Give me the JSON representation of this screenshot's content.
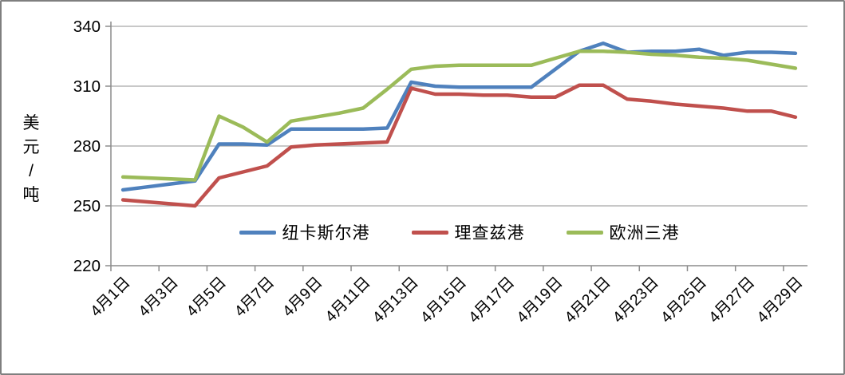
{
  "chart_data": {
    "type": "line",
    "title": "",
    "ylabel": "美元/吨",
    "xlabel": "",
    "ylim": [
      220,
      340
    ],
    "yticks": [
      220,
      250,
      280,
      310,
      340
    ],
    "grid": true,
    "legend_position": "bottom-center-inside",
    "x_points": 29,
    "x_note_days_per_tick": 2,
    "x_tick_labels": [
      "4月1日",
      "4月3日",
      "4月5日",
      "4月7日",
      "4月9日",
      "4月11日",
      "4月13日",
      "4月15日",
      "4月17日",
      "4月19日",
      "4月21日",
      "4月23日",
      "4月25日",
      "4月27日",
      "4月29日"
    ],
    "series": [
      {
        "name": "纽卡斯尔港",
        "color": "#4F81BD",
        "values": [
          258,
          259.5,
          261,
          262.5,
          281,
          281,
          280.5,
          288.5,
          288.5,
          288.5,
          288.5,
          289,
          312,
          310,
          309.5,
          309.5,
          309.5,
          309.5,
          318.5,
          327.5,
          331.5,
          327,
          327.5,
          327.5,
          328.5,
          325.5,
          327,
          327,
          326.5
        ]
      },
      {
        "name": "理查兹港",
        "color": "#C0504D",
        "values": [
          253,
          252,
          251,
          250,
          264,
          267,
          270,
          279.5,
          280.5,
          281,
          281.5,
          282,
          309,
          306,
          306,
          305.5,
          305.5,
          304.5,
          304.5,
          310.5,
          310.5,
          303.5,
          302.5,
          301,
          300,
          299,
          297.5,
          297.5,
          294.5
        ]
      },
      {
        "name": "欧洲三港",
        "color": "#9BBB59",
        "values": [
          264.5,
          264,
          263.5,
          263,
          295,
          289.5,
          282,
          292.5,
          294.5,
          296.5,
          299,
          308.5,
          318.5,
          320,
          320.5,
          320.5,
          320.5,
          320.5,
          324,
          327.5,
          327.5,
          327,
          326,
          325.5,
          324.5,
          324,
          323,
          321,
          319
        ]
      }
    ],
    "colors": {
      "gridline": "#A6A6A6",
      "axis": "#8C8C8C",
      "text": "#000000"
    }
  }
}
